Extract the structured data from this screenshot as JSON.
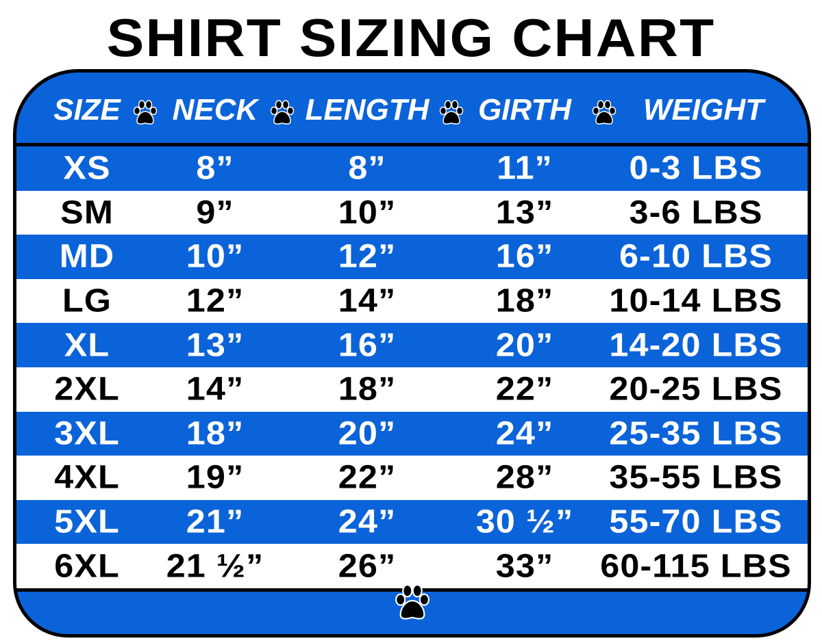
{
  "title": "SHIRT SIZING CHART",
  "colors": {
    "blue": "#0b63d9",
    "white": "#ffffff",
    "black": "#000000"
  },
  "icons": {
    "separator": "paw-print-icon",
    "footer": "paw-print-icon"
  },
  "headers": [
    "SIZE",
    "NECK",
    "LENGTH",
    "GIRTH",
    "WEIGHT"
  ],
  "rows": [
    {
      "size": "XS",
      "neck": "8”",
      "length": "8”",
      "girth": "11”",
      "weight": "0-3 LBS"
    },
    {
      "size": "SM",
      "neck": "9”",
      "length": "10”",
      "girth": "13”",
      "weight": "3-6 LBS"
    },
    {
      "size": "MD",
      "neck": "10”",
      "length": "12”",
      "girth": "16”",
      "weight": "6-10 LBS"
    },
    {
      "size": "LG",
      "neck": "12”",
      "length": "14”",
      "girth": "18”",
      "weight": "10-14 LBS"
    },
    {
      "size": "XL",
      "neck": "13”",
      "length": "16”",
      "girth": "20”",
      "weight": "14-20 LBS"
    },
    {
      "size": "2XL",
      "neck": "14”",
      "length": "18”",
      "girth": "22”",
      "weight": "20-25 LBS"
    },
    {
      "size": "3XL",
      "neck": "18”",
      "length": "20”",
      "girth": "24”",
      "weight": "25-35 LBS"
    },
    {
      "size": "4XL",
      "neck": "19”",
      "length": "22”",
      "girth": "28”",
      "weight": "35-55 LBS"
    },
    {
      "size": "5XL",
      "neck": "21”",
      "length": "24”",
      "girth": "30 ½”",
      "weight": "55-70 LBS"
    },
    {
      "size": "6XL",
      "neck": "21 ½”",
      "length": "26”",
      "girth": "33”",
      "weight": "60-115 LBS"
    }
  ]
}
